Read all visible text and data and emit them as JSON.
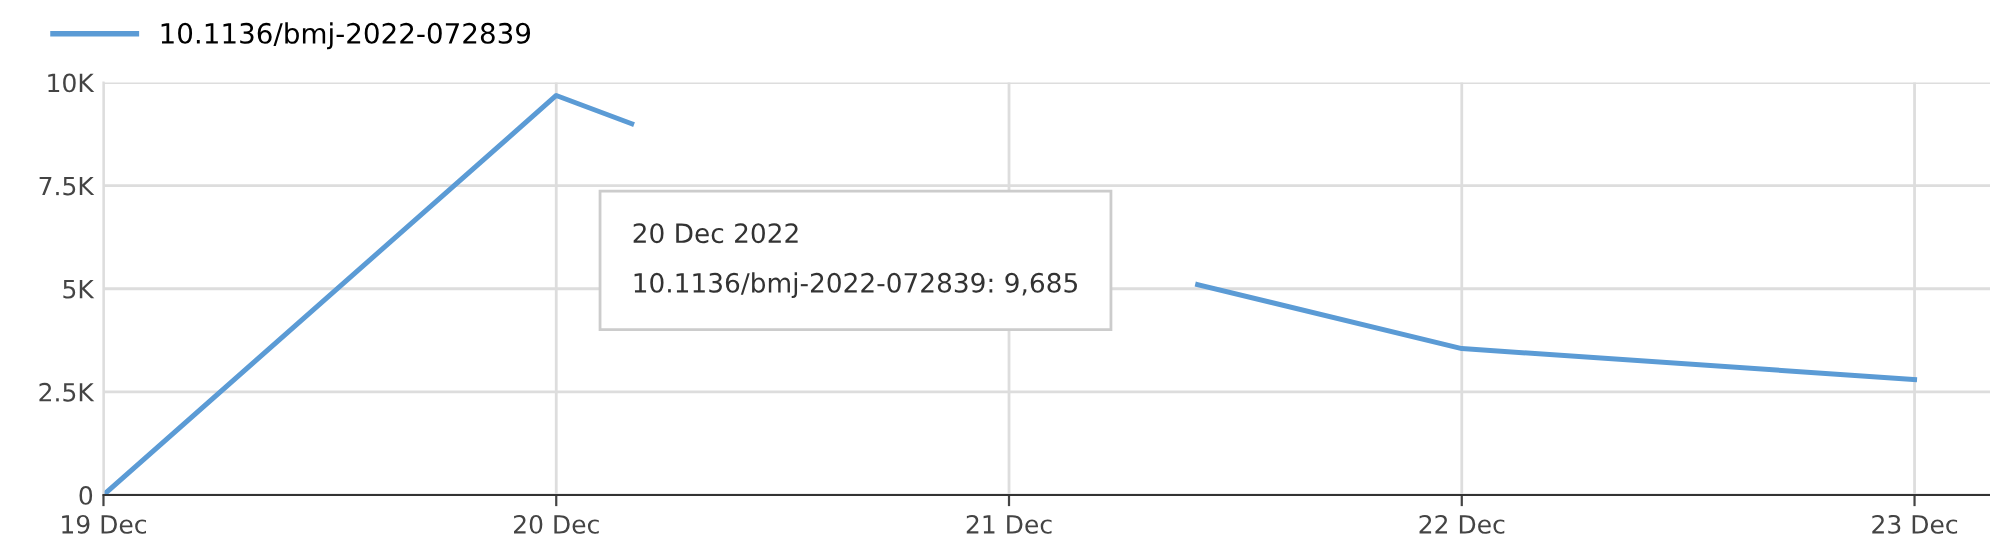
{
  "chart_data": {
    "type": "line",
    "x": [
      "2022-12-19",
      "2022-12-20",
      "2022-12-20T04:00",
      "2022-12-21",
      "2022-12-21T10:00",
      "2022-12-22",
      "2022-12-23"
    ],
    "series": [
      {
        "name": "10.1136/bmj-2022-072839",
        "color": "#5b9bd5",
        "values": [
          0,
          9685,
          9000,
          null,
          5100,
          3550,
          2800
        ]
      }
    ],
    "xlim": [
      "2022-12-19",
      "2022-12-23T04:00"
    ],
    "xticks": [
      {
        "value": "2022-12-19",
        "label": "19 Dec"
      },
      {
        "value": "2022-12-20",
        "label": "20 Dec"
      },
      {
        "value": "2022-12-21",
        "label": "21 Dec"
      },
      {
        "value": "2022-12-22",
        "label": "22 Dec"
      },
      {
        "value": "2022-12-23",
        "label": "23 Dec"
      }
    ],
    "ylim": [
      0,
      10000
    ],
    "yticks": [
      0,
      {
        "value": 2500,
        "label": "2.5K"
      },
      {
        "value": 5000,
        "label": "5K"
      },
      {
        "value": 7500,
        "label": "7.5K"
      },
      {
        "value": 10000,
        "label": "10K"
      }
    ],
    "grid": true,
    "legend": "top left",
    "marker": "none",
    "line_style": "solid",
    "annotations": [
      "20 Dec 2022\n10.1136/bmj-2022-072839: 9,685"
    ]
  }
}
